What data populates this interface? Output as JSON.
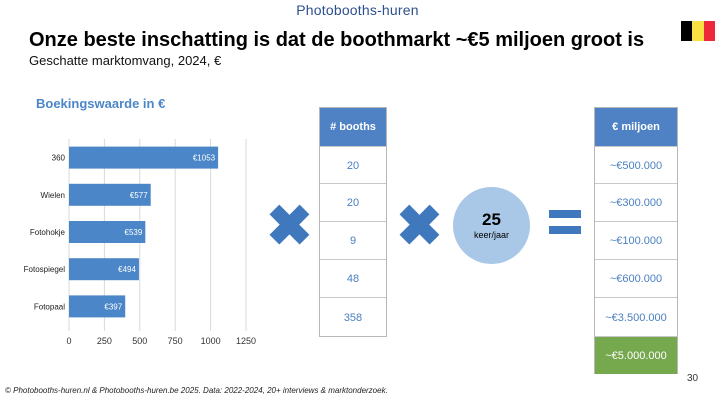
{
  "brand": "Photobooths-huren",
  "title": "Onze beste inschatting is dat de boothmarkt ~€5 miljoen groot is",
  "subtitle": "Geschatte marktomvang, 2024, €",
  "flag_colors": [
    "#000000",
    "#fae042",
    "#ed2939"
  ],
  "chart_data": {
    "type": "bar",
    "title": "Boekingswaarde in €",
    "orientation": "horizontal",
    "categories": [
      "360",
      "Wielen",
      "Fotohokje",
      "Fotospiegel",
      "Fotopaal"
    ],
    "values": [
      1053,
      577,
      539,
      494,
      397
    ],
    "data_labels": [
      "€1053",
      "€577",
      "€539",
      "€494",
      "€397"
    ],
    "xlim": [
      0,
      1250
    ],
    "xticks": [
      "0",
      "250",
      "500",
      "750",
      "1000",
      "1250"
    ],
    "grid": true,
    "bar_color": "#4a86c8"
  },
  "booths_table": {
    "header": "# booths",
    "values": [
      "20",
      "20",
      "9",
      "48",
      "358"
    ]
  },
  "multiplier": {
    "value": "25",
    "label": "keer/jaar"
  },
  "result_table": {
    "header": "€ miljoen",
    "values": [
      "~€500.000",
      "~€300.000",
      "~€100.000",
      "~€600.000",
      "~€3.500.000"
    ],
    "total": "~€5.000.000",
    "total_color": "#76a84e"
  },
  "colors": {
    "accent": "#4a86c8",
    "header_fill": "#4e82c4",
    "operator": "#3f78bd",
    "circle": "#a9c8e8"
  },
  "page_number": "30",
  "footer": "© Photobooths-huren.nl & Photobooths-huren.be 2025. Data: 2022-2024, 20+ interviews & marktonderzoek."
}
